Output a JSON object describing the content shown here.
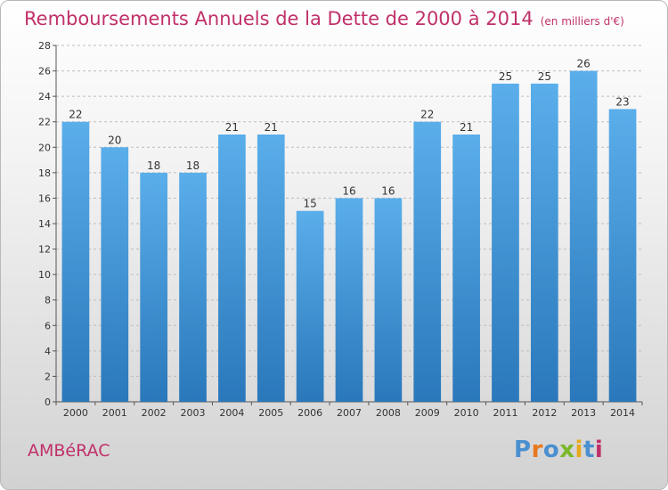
{
  "header": {
    "title": "Remboursements Annuels de la Dette de 2000 à 2014",
    "unit": "(en milliers d'€)"
  },
  "footer": {
    "commune": "AMBéRAC",
    "logo": "Proxiti"
  },
  "colors": {
    "title": "#c0306a",
    "bar_top": "#5aaeea",
    "bar_bottom": "#2a78bb",
    "logo_letters": [
      "#4a8fd0",
      "#e8781e",
      "#4a8fd0",
      "#7ab82a",
      "#e8a81e",
      "#4a8fd0",
      "#c0306a"
    ]
  },
  "chart_data": {
    "type": "bar",
    "title": "Remboursements Annuels de la Dette de 2000 à 2014",
    "subtitle": "(en milliers d'€)",
    "categories": [
      "2000",
      "2001",
      "2002",
      "2003",
      "2004",
      "2005",
      "2006",
      "2007",
      "2008",
      "2009",
      "2010",
      "2011",
      "2012",
      "2013",
      "2014"
    ],
    "values": [
      22,
      20,
      18,
      18,
      21,
      21,
      15,
      16,
      16,
      22,
      21,
      25,
      25,
      26,
      23
    ],
    "data_labels": [
      "22",
      "20",
      "18",
      "18",
      "21",
      "21",
      "15",
      "16",
      "16",
      "22",
      "21",
      "25",
      "25",
      "26",
      "23"
    ],
    "ylim": [
      0,
      28
    ],
    "yticks": [
      "0",
      "2",
      "4",
      "6",
      "8",
      "10",
      "12",
      "14",
      "16",
      "18",
      "20",
      "22",
      "24",
      "26",
      "28"
    ],
    "grid": true,
    "legend": "none"
  }
}
